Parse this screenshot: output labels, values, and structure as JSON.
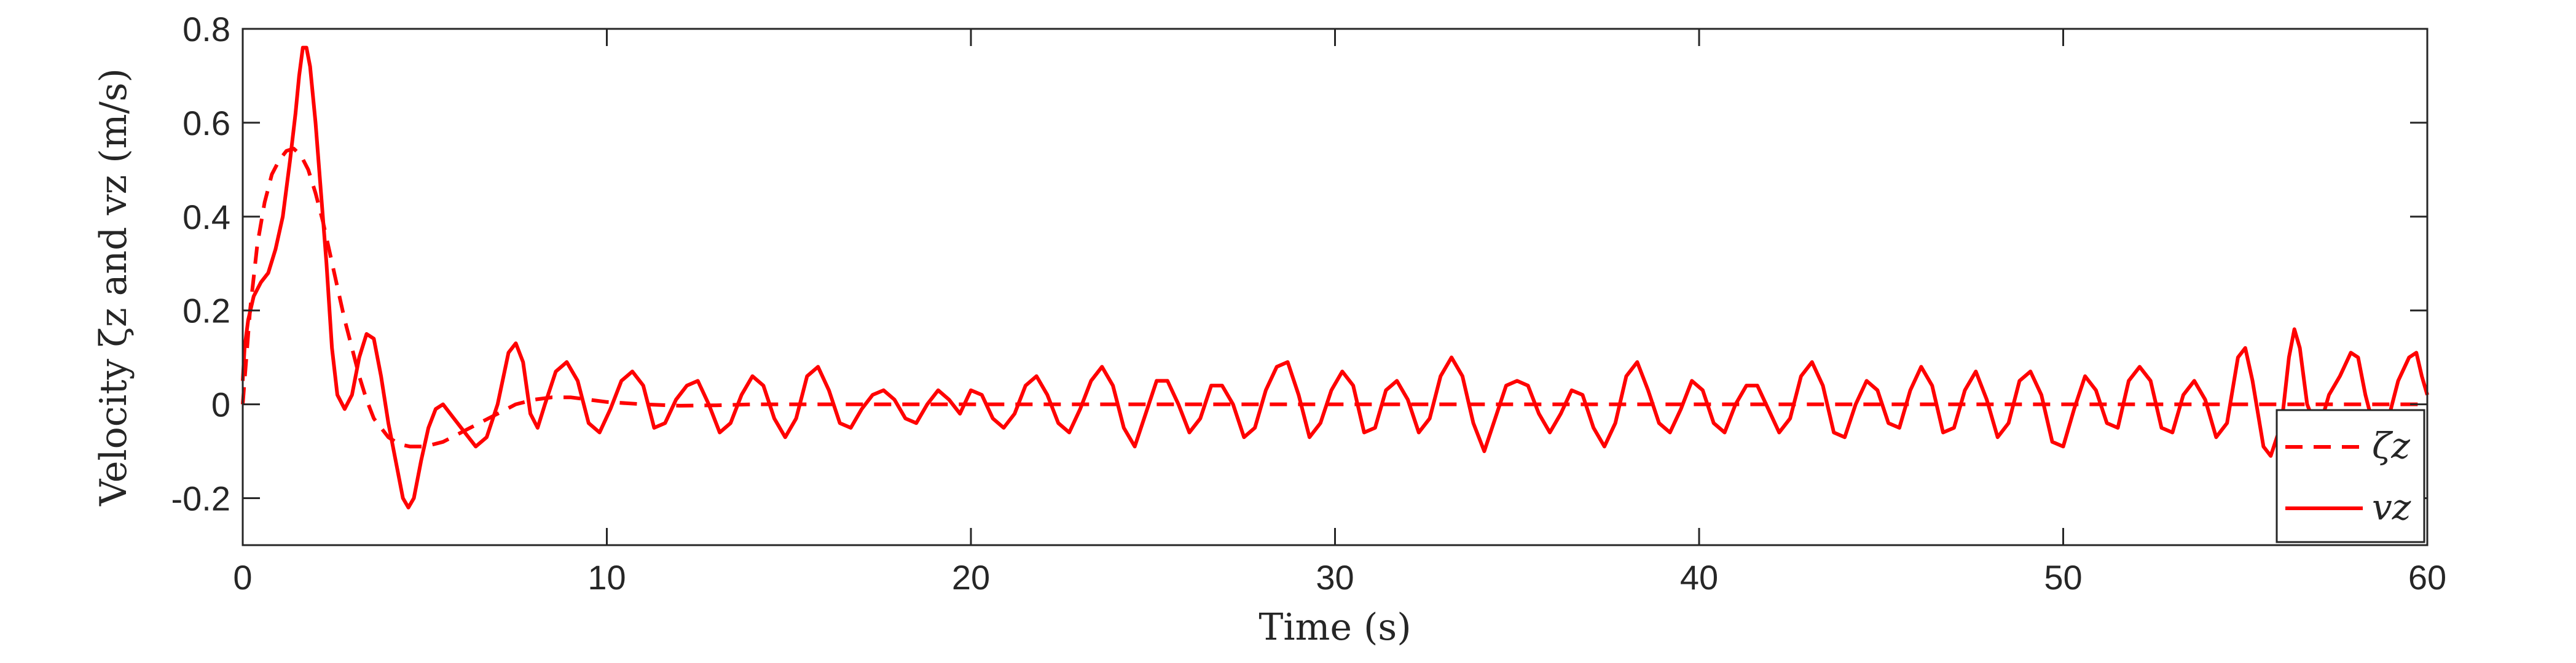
{
  "chart_data": {
    "type": "line",
    "xlabel": "Time (s)",
    "ylabel": "Velocity ζz and vz (m/s)",
    "xlim": [
      0,
      60
    ],
    "ylim": [
      -0.3,
      0.8
    ],
    "x_ticks": [
      0,
      10,
      20,
      30,
      40,
      50,
      60
    ],
    "x_tick_labels": [
      "0",
      "10",
      "20",
      "30",
      "40",
      "50",
      "60"
    ],
    "y_ticks": [
      -0.2,
      0,
      0.2,
      0.4,
      0.6,
      0.8
    ],
    "y_tick_labels": [
      "-0.2",
      "0",
      "0.2",
      "0.4",
      "0.6",
      "0.8"
    ],
    "grid": false,
    "box": true,
    "legend": {
      "position": "bottom-right",
      "entries": [
        {
          "label": "ζz",
          "style": "dashed",
          "color": "#ff0000"
        },
        {
          "label": "vz",
          "style": "solid",
          "color": "#ff0000"
        }
      ]
    },
    "series": [
      {
        "name": "ζz",
        "style": "dashed",
        "color": "#ff0000",
        "points": [
          [
            0,
            0.0
          ],
          [
            0.2,
            0.2
          ],
          [
            0.4,
            0.34
          ],
          [
            0.6,
            0.43
          ],
          [
            0.8,
            0.49
          ],
          [
            1.0,
            0.52
          ],
          [
            1.2,
            0.54
          ],
          [
            1.4,
            0.545
          ],
          [
            1.6,
            0.53
          ],
          [
            1.8,
            0.5
          ],
          [
            2.0,
            0.45
          ],
          [
            2.2,
            0.39
          ],
          [
            2.4,
            0.32
          ],
          [
            2.6,
            0.25
          ],
          [
            2.8,
            0.18
          ],
          [
            3.0,
            0.12
          ],
          [
            3.2,
            0.06
          ],
          [
            3.4,
            0.01
          ],
          [
            3.6,
            -0.03
          ],
          [
            3.8,
            -0.05
          ],
          [
            4.0,
            -0.07
          ],
          [
            4.3,
            -0.085
          ],
          [
            4.6,
            -0.09
          ],
          [
            5.0,
            -0.09
          ],
          [
            5.5,
            -0.08
          ],
          [
            6.0,
            -0.06
          ],
          [
            6.5,
            -0.04
          ],
          [
            7.0,
            -0.02
          ],
          [
            7.5,
            0.0
          ],
          [
            8.0,
            0.01
          ],
          [
            8.5,
            0.015
          ],
          [
            9.0,
            0.015
          ],
          [
            9.5,
            0.01
          ],
          [
            10.0,
            0.005
          ],
          [
            11.0,
            0.0
          ],
          [
            12.0,
            -0.003
          ],
          [
            13.0,
            -0.002
          ],
          [
            14.0,
            0.0
          ],
          [
            60.0,
            0.0
          ]
        ]
      },
      {
        "name": "vz",
        "style": "solid",
        "color": "#ff0000",
        "points": [
          [
            0,
            0.05
          ],
          [
            0.05,
            0.12
          ],
          [
            0.15,
            0.18
          ],
          [
            0.3,
            0.23
          ],
          [
            0.5,
            0.26
          ],
          [
            0.7,
            0.28
          ],
          [
            0.9,
            0.33
          ],
          [
            1.1,
            0.4
          ],
          [
            1.3,
            0.52
          ],
          [
            1.45,
            0.62
          ],
          [
            1.55,
            0.7
          ],
          [
            1.65,
            0.76
          ],
          [
            1.75,
            0.76
          ],
          [
            1.85,
            0.72
          ],
          [
            2.0,
            0.6
          ],
          [
            2.15,
            0.45
          ],
          [
            2.3,
            0.3
          ],
          [
            2.45,
            0.12
          ],
          [
            2.6,
            0.02
          ],
          [
            2.8,
            -0.01
          ],
          [
            3.0,
            0.02
          ],
          [
            3.2,
            0.1
          ],
          [
            3.4,
            0.15
          ],
          [
            3.6,
            0.14
          ],
          [
            3.8,
            0.06
          ],
          [
            4.0,
            -0.04
          ],
          [
            4.2,
            -0.12
          ],
          [
            4.4,
            -0.2
          ],
          [
            4.55,
            -0.22
          ],
          [
            4.7,
            -0.2
          ],
          [
            4.9,
            -0.12
          ],
          [
            5.1,
            -0.05
          ],
          [
            5.3,
            -0.01
          ],
          [
            5.5,
            0.0
          ],
          [
            5.8,
            -0.03
          ],
          [
            6.1,
            -0.06
          ],
          [
            6.4,
            -0.09
          ],
          [
            6.7,
            -0.07
          ],
          [
            7.0,
            0.0
          ],
          [
            7.3,
            0.11
          ],
          [
            7.5,
            0.13
          ],
          [
            7.7,
            0.09
          ],
          [
            7.9,
            -0.02
          ],
          [
            8.1,
            -0.05
          ],
          [
            8.3,
            0.0
          ],
          [
            8.6,
            0.07
          ],
          [
            8.9,
            0.09
          ],
          [
            9.2,
            0.05
          ],
          [
            9.5,
            -0.04
          ],
          [
            9.8,
            -0.06
          ],
          [
            10.1,
            -0.01
          ],
          [
            10.4,
            0.05
          ],
          [
            10.7,
            0.07
          ],
          [
            11.0,
            0.04
          ],
          [
            11.3,
            -0.05
          ],
          [
            11.6,
            -0.04
          ],
          [
            11.9,
            0.01
          ],
          [
            12.2,
            0.04
          ],
          [
            12.5,
            0.05
          ],
          [
            12.8,
            0.0
          ],
          [
            13.1,
            -0.06
          ],
          [
            13.4,
            -0.04
          ],
          [
            13.7,
            0.02
          ],
          [
            14.0,
            0.06
          ],
          [
            14.3,
            0.04
          ],
          [
            14.6,
            -0.03
          ],
          [
            14.9,
            -0.07
          ],
          [
            15.2,
            -0.03
          ],
          [
            15.5,
            0.06
          ],
          [
            15.8,
            0.08
          ],
          [
            16.1,
            0.03
          ],
          [
            16.4,
            -0.04
          ],
          [
            16.7,
            -0.05
          ],
          [
            17.0,
            -0.01
          ],
          [
            17.3,
            0.02
          ],
          [
            17.6,
            0.03
          ],
          [
            17.9,
            0.01
          ],
          [
            18.2,
            -0.03
          ],
          [
            18.5,
            -0.04
          ],
          [
            18.8,
            0.0
          ],
          [
            19.1,
            0.03
          ],
          [
            19.4,
            0.01
          ],
          [
            19.7,
            -0.02
          ],
          [
            20.0,
            0.03
          ],
          [
            20.3,
            0.02
          ],
          [
            20.6,
            -0.03
          ],
          [
            20.9,
            -0.05
          ],
          [
            21.2,
            -0.02
          ],
          [
            21.5,
            0.04
          ],
          [
            21.8,
            0.06
          ],
          [
            22.1,
            0.02
          ],
          [
            22.4,
            -0.04
          ],
          [
            22.7,
            -0.06
          ],
          [
            23.0,
            -0.01
          ],
          [
            23.3,
            0.05
          ],
          [
            23.6,
            0.08
          ],
          [
            23.9,
            0.04
          ],
          [
            24.2,
            -0.05
          ],
          [
            24.5,
            -0.09
          ],
          [
            24.8,
            -0.02
          ],
          [
            25.1,
            0.05
          ],
          [
            25.4,
            0.05
          ],
          [
            25.7,
            0.0
          ],
          [
            26.0,
            -0.06
          ],
          [
            26.3,
            -0.03
          ],
          [
            26.6,
            0.04
          ],
          [
            26.9,
            0.04
          ],
          [
            27.2,
            0.0
          ],
          [
            27.5,
            -0.07
          ],
          [
            27.8,
            -0.05
          ],
          [
            28.1,
            0.03
          ],
          [
            28.4,
            0.08
          ],
          [
            28.7,
            0.09
          ],
          [
            29.0,
            0.02
          ],
          [
            29.3,
            -0.07
          ],
          [
            29.6,
            -0.04
          ],
          [
            29.9,
            0.03
          ],
          [
            30.2,
            0.07
          ],
          [
            30.5,
            0.04
          ],
          [
            30.8,
            -0.06
          ],
          [
            31.1,
            -0.05
          ],
          [
            31.4,
            0.03
          ],
          [
            31.7,
            0.05
          ],
          [
            32.0,
            0.01
          ],
          [
            32.3,
            -0.06
          ],
          [
            32.6,
            -0.03
          ],
          [
            32.9,
            0.06
          ],
          [
            33.2,
            0.1
          ],
          [
            33.5,
            0.06
          ],
          [
            33.8,
            -0.04
          ],
          [
            34.1,
            -0.1
          ],
          [
            34.4,
            -0.03
          ],
          [
            34.7,
            0.04
          ],
          [
            35.0,
            0.05
          ],
          [
            35.3,
            0.04
          ],
          [
            35.6,
            -0.02
          ],
          [
            35.9,
            -0.06
          ],
          [
            36.2,
            -0.02
          ],
          [
            36.5,
            0.03
          ],
          [
            36.8,
            0.02
          ],
          [
            37.1,
            -0.05
          ],
          [
            37.4,
            -0.09
          ],
          [
            37.7,
            -0.04
          ],
          [
            38.0,
            0.06
          ],
          [
            38.3,
            0.09
          ],
          [
            38.6,
            0.03
          ],
          [
            38.9,
            -0.04
          ],
          [
            39.2,
            -0.06
          ],
          [
            39.5,
            -0.01
          ],
          [
            39.8,
            0.05
          ],
          [
            40.1,
            0.03
          ],
          [
            40.4,
            -0.04
          ],
          [
            40.7,
            -0.06
          ],
          [
            41.0,
            0.0
          ],
          [
            41.3,
            0.04
          ],
          [
            41.6,
            0.04
          ],
          [
            41.9,
            -0.01
          ],
          [
            42.2,
            -0.06
          ],
          [
            42.5,
            -0.03
          ],
          [
            42.8,
            0.06
          ],
          [
            43.1,
            0.09
          ],
          [
            43.4,
            0.04
          ],
          [
            43.7,
            -0.06
          ],
          [
            44.0,
            -0.07
          ],
          [
            44.3,
            0.0
          ],
          [
            44.6,
            0.05
          ],
          [
            44.9,
            0.03
          ],
          [
            45.2,
            -0.04
          ],
          [
            45.5,
            -0.05
          ],
          [
            45.8,
            0.03
          ],
          [
            46.1,
            0.08
          ],
          [
            46.4,
            0.04
          ],
          [
            46.7,
            -0.06
          ],
          [
            47.0,
            -0.05
          ],
          [
            47.3,
            0.03
          ],
          [
            47.6,
            0.07
          ],
          [
            47.9,
            0.01
          ],
          [
            48.2,
            -0.07
          ],
          [
            48.5,
            -0.04
          ],
          [
            48.8,
            0.05
          ],
          [
            49.1,
            0.07
          ],
          [
            49.4,
            0.02
          ],
          [
            49.7,
            -0.08
          ],
          [
            50.0,
            -0.09
          ],
          [
            50.3,
            -0.01
          ],
          [
            50.6,
            0.06
          ],
          [
            50.9,
            0.03
          ],
          [
            51.2,
            -0.04
          ],
          [
            51.5,
            -0.05
          ],
          [
            51.8,
            0.05
          ],
          [
            52.1,
            0.08
          ],
          [
            52.4,
            0.05
          ],
          [
            52.7,
            -0.05
          ],
          [
            53.0,
            -0.06
          ],
          [
            53.3,
            0.02
          ],
          [
            53.6,
            0.05
          ],
          [
            53.9,
            0.01
          ],
          [
            54.2,
            -0.07
          ],
          [
            54.5,
            -0.04
          ],
          [
            54.8,
            0.1
          ],
          [
            55.0,
            0.12
          ],
          [
            55.2,
            0.05
          ],
          [
            55.5,
            -0.09
          ],
          [
            55.7,
            -0.11
          ],
          [
            56.0,
            -0.04
          ],
          [
            56.2,
            0.1
          ],
          [
            56.35,
            0.16
          ],
          [
            56.5,
            0.12
          ],
          [
            56.7,
            0.0
          ],
          [
            57.0,
            -0.06
          ],
          [
            57.3,
            0.02
          ],
          [
            57.6,
            0.06
          ],
          [
            57.9,
            0.11
          ],
          [
            58.1,
            0.1
          ],
          [
            58.3,
            0.02
          ],
          [
            58.6,
            -0.07
          ],
          [
            58.9,
            -0.04
          ],
          [
            59.2,
            0.05
          ],
          [
            59.5,
            0.1
          ],
          [
            59.7,
            0.11
          ],
          [
            59.85,
            0.06
          ],
          [
            60.0,
            0.02
          ]
        ]
      }
    ]
  }
}
